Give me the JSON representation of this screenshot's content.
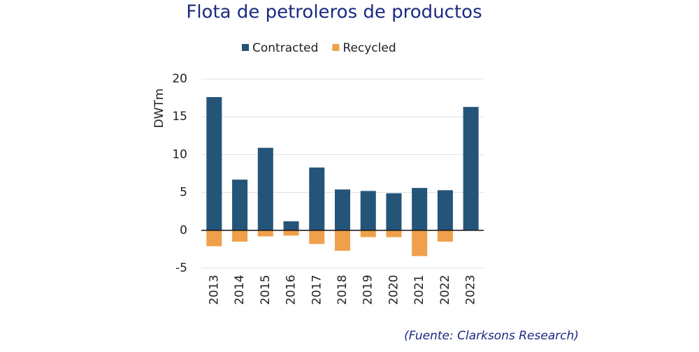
{
  "chart_data": {
    "type": "bar",
    "title": "Flota de petroleros de productos",
    "y_label": "DWTm",
    "source": "(Fuente: Clarksons Research)",
    "categories": [
      "2013",
      "2014",
      "2015",
      "2016",
      "2017",
      "2018",
      "2019",
      "2020",
      "2021",
      "2022",
      "2023"
    ],
    "series": [
      {
        "name": "Contracted",
        "color": "#245579",
        "values": [
          17.6,
          6.7,
          10.9,
          1.2,
          8.3,
          5.4,
          5.2,
          4.9,
          5.6,
          5.3,
          16.3
        ]
      },
      {
        "name": "Recycled",
        "color": "#f0a04b",
        "values": [
          -2.1,
          -1.5,
          -0.8,
          -0.7,
          -1.8,
          -2.7,
          -0.9,
          -0.9,
          -3.4,
          -1.5,
          0
        ]
      }
    ],
    "ylim": [
      -5,
      20
    ],
    "yticks": [
      -5,
      0,
      5,
      10,
      15,
      20
    ],
    "grid": true
  }
}
